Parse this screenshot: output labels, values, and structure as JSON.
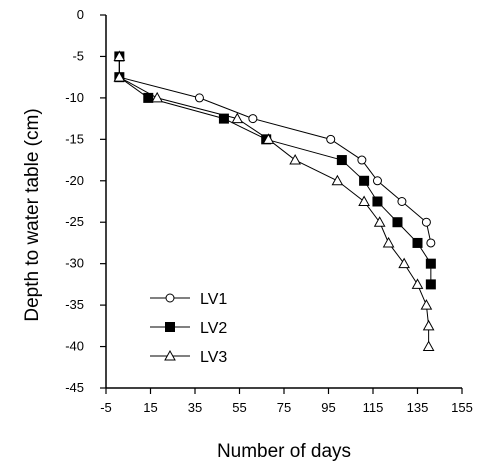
{
  "chart_data": {
    "type": "line",
    "xlabel": "Number of days",
    "ylabel": "Depth to water table (cm)",
    "xlim": [
      -5,
      155
    ],
    "ylim": [
      -45,
      0
    ],
    "xticks": [
      -5,
      15,
      35,
      55,
      75,
      95,
      115,
      135,
      155
    ],
    "yticks": [
      0,
      -5,
      -10,
      -15,
      -20,
      -25,
      -30,
      -35,
      -40,
      -45
    ],
    "grid": false,
    "legend": "bottom-left",
    "series": [
      {
        "name": "LV1",
        "marker": "circle-open",
        "x": [
          1,
          1,
          37,
          61,
          96,
          110,
          117,
          128,
          139,
          141
        ],
        "y": [
          -5,
          -7.5,
          -10,
          -12.5,
          -15,
          -17.5,
          -20,
          -22.5,
          -25,
          -27.5
        ]
      },
      {
        "name": "LV2",
        "marker": "square-filled",
        "x": [
          1,
          1,
          14,
          48,
          67,
          101,
          111,
          117,
          126,
          135,
          141,
          141
        ],
        "y": [
          -5,
          -7.5,
          -10,
          -12.5,
          -15,
          -17.5,
          -20,
          -22.5,
          -25,
          -27.5,
          -30,
          -32.5
        ]
      },
      {
        "name": "LV3",
        "marker": "triangle-open",
        "x": [
          1,
          1,
          18,
          54,
          68,
          80,
          99,
          111,
          118,
          122,
          129,
          135,
          139,
          140,
          140
        ],
        "y": [
          -5,
          -7.5,
          -10,
          -12.5,
          -15,
          -17.5,
          -20,
          -22.5,
          -25,
          -27.5,
          -30,
          -32.5,
          -35,
          -37.5,
          -40
        ]
      }
    ]
  }
}
